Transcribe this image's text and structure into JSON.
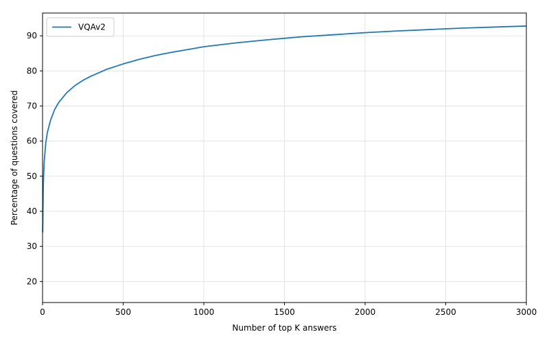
{
  "chart_data": {
    "type": "line",
    "xlabel": "Number of top K answers",
    "ylabel": "Percentage of questions covered",
    "xlim": [
      0,
      3000
    ],
    "ylim": [
      14,
      96.5
    ],
    "xticks": [
      0,
      500,
      1000,
      1500,
      2000,
      2500,
      3000
    ],
    "yticks": [
      20,
      30,
      40,
      50,
      60,
      70,
      80,
      90
    ],
    "grid": true,
    "legend_position": "top-left",
    "series": [
      {
        "name": "VQAv2",
        "color": "#1f77b4",
        "x": [
          1,
          5,
          10,
          20,
          30,
          50,
          75,
          100,
          150,
          200,
          250,
          300,
          400,
          500,
          600,
          700,
          800,
          900,
          1000,
          1200,
          1400,
          1500,
          1600,
          1800,
          2000,
          2200,
          2400,
          2500,
          2600,
          2800,
          3000
        ],
        "y": [
          34.0,
          48.0,
          54.0,
          59.5,
          62.5,
          66.0,
          69.0,
          71.0,
          73.8,
          75.8,
          77.3,
          78.5,
          80.5,
          82.0,
          83.3,
          84.4,
          85.3,
          86.1,
          86.9,
          88.0,
          88.9,
          89.3,
          89.7,
          90.3,
          90.9,
          91.4,
          91.8,
          92.0,
          92.2,
          92.5,
          92.8
        ]
      }
    ]
  }
}
